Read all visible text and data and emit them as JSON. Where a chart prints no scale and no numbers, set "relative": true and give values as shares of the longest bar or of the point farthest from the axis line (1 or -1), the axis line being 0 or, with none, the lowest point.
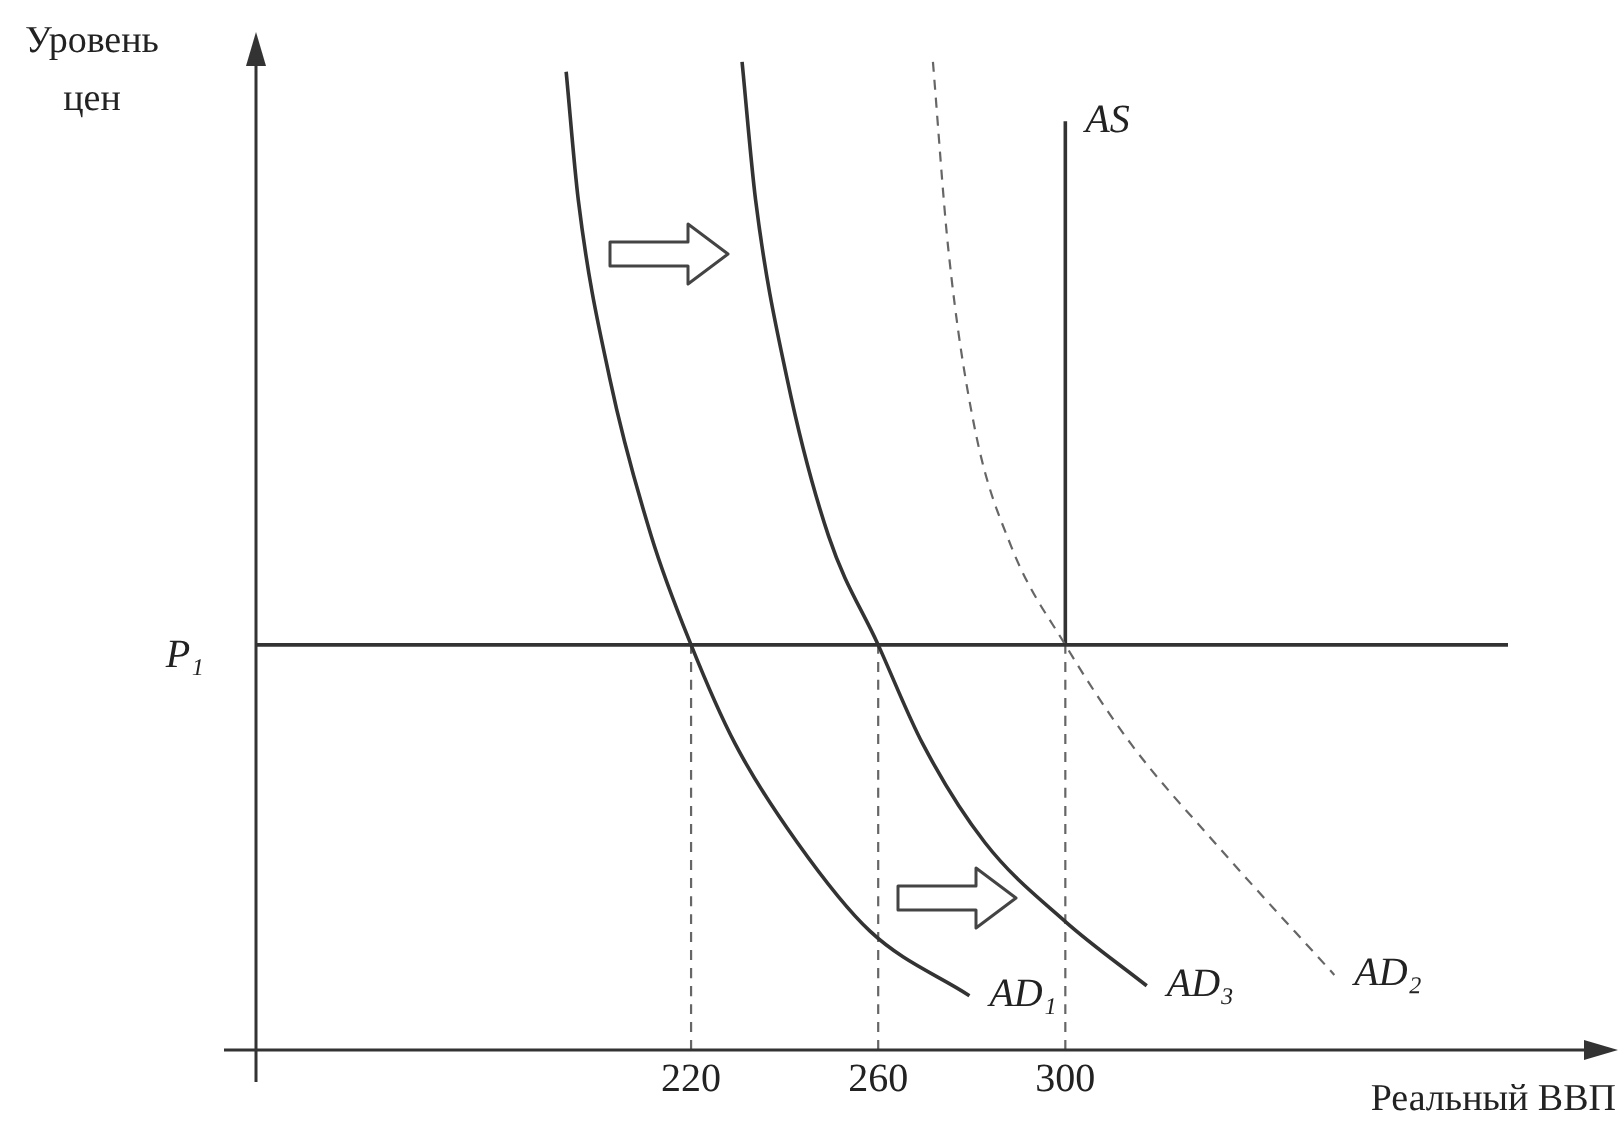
{
  "chart_data": {
    "type": "line",
    "xlabel": "Реальный ВВП",
    "ylabel": "Уровень цен",
    "relative": true,
    "xlim": [
      127,
      416
    ],
    "xticks": [
      220,
      260,
      300
    ],
    "grid": false,
    "legend": false,
    "marker": "none",
    "series": [
      {
        "name": "AD₁",
        "color": "#333333",
        "line_style": "solid",
        "x": [
          193.3,
          195.9,
          202.6,
          211.5,
          220,
          229.4,
          242.7,
          258.3,
          279.5
        ],
        "values": [
          0.99,
          0.86,
          0.68,
          0.52,
          0.41,
          0.31,
          0.21,
          0.12,
          0.055
        ]
      },
      {
        "name": "AD₃",
        "color": "#333333",
        "line_style": "solid",
        "x": [
          230.9,
          233.8,
          240.5,
          249.4,
          260,
          269.5,
          282.8,
          300,
          317.4
        ],
        "values": [
          1.0,
          0.86,
          0.68,
          0.52,
          0.41,
          0.31,
          0.21,
          0.13,
          0.065
        ]
      },
      {
        "name": "AD₂",
        "color": "#666666",
        "line_style": "dashed",
        "x": [
          271.7,
          275,
          280.6,
          288.4,
          300,
          314,
          331.9,
          357.5
        ],
        "values": [
          1.0,
          0.81,
          0.63,
          0.51,
          0.41,
          0.31,
          0.21,
          0.076
        ]
      },
      {
        "name": "AS",
        "color": "#333333",
        "line_style": "solid",
        "x": [
          300,
          300
        ],
        "values": [
          0.41,
          0.94
        ]
      },
      {
        "color": "#666666",
        "line_style": "dashed",
        "x": [
          220,
          220
        ],
        "values": [
          0,
          0.41
        ]
      },
      {
        "color": "#666666",
        "line_style": "dashed",
        "x": [
          260,
          260
        ],
        "values": [
          0,
          0.41
        ]
      },
      {
        "color": "#666666",
        "line_style": "dashed",
        "x": [
          300,
          300
        ],
        "values": [
          0,
          0.41
        ]
      }
    ],
    "ref_lines": [
      {
        "axis": "y",
        "value": 0.41,
        "label": "P₁",
        "color": "#333333"
      }
    ]
  }
}
